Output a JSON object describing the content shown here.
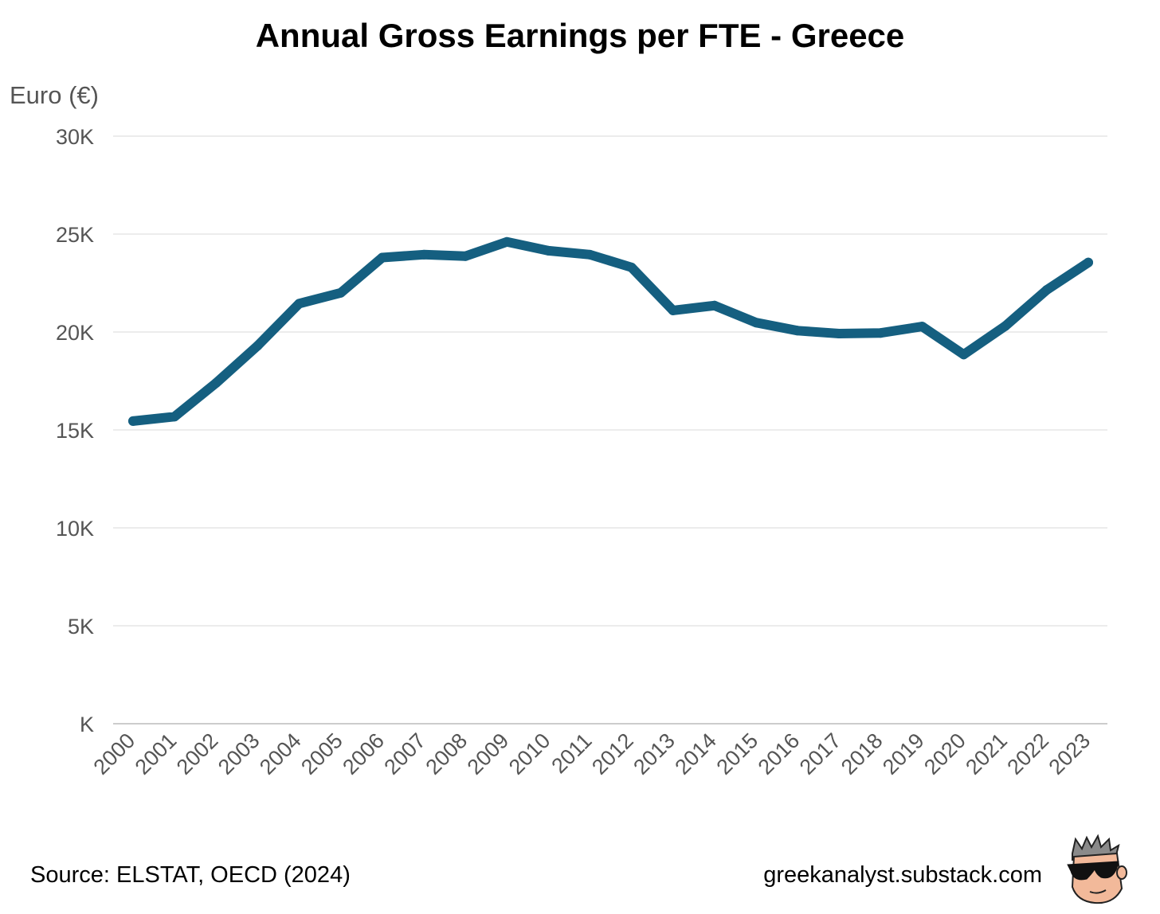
{
  "chart_data": {
    "type": "line",
    "title": "Annual Gross Earnings per FTE - Greece",
    "ylabel": "Euro (€)",
    "xlabel": "",
    "x": [
      "2000",
      "2001",
      "2002",
      "2003",
      "2004",
      "2005",
      "2006",
      "2007",
      "2008",
      "2009",
      "2010",
      "2011",
      "2012",
      "2013",
      "2014",
      "2015",
      "2016",
      "2017",
      "2018",
      "2019",
      "2020",
      "2021",
      "2022",
      "2023"
    ],
    "series": [
      {
        "values": [
          15450,
          15680,
          17400,
          19300,
          21450,
          22000,
          23800,
          23950,
          23870,
          24600,
          24150,
          23950,
          23300,
          21100,
          21350,
          20480,
          20070,
          19920,
          19950,
          20280,
          18850,
          20300,
          22150,
          23550
        ]
      }
    ],
    "ylim": [
      0,
      30000
    ],
    "y_ticks": [
      {
        "value": 0,
        "label": "K"
      },
      {
        "value": 5000,
        "label": "5K"
      },
      {
        "value": 10000,
        "label": "10K"
      },
      {
        "value": 15000,
        "label": "15K"
      },
      {
        "value": 20000,
        "label": "20K"
      },
      {
        "value": 25000,
        "label": "25K"
      },
      {
        "value": 30000,
        "label": "30K"
      }
    ],
    "grid": true,
    "line_color": "#155f80",
    "grid_color": "#e6e6e6",
    "axis_color": "#cccccc"
  },
  "footer": {
    "source": "Source: ELSTAT, OECD (2024)",
    "site": "greekanalyst.substack.com",
    "logo_icon": "sunglasses-mascot-icon"
  }
}
